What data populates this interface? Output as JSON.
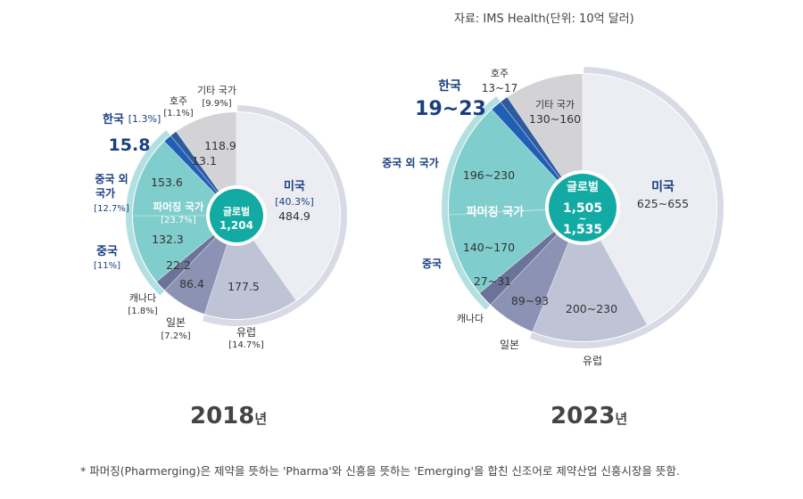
{
  "source": "자료: IMS Health(단위: 10억 달러)",
  "footnote": "* 파머징(Pharmerging)은 제약을 뜻하는 'Pharma'와 신흥을 뜻하는 'Emerging'을 합친 신조어로 제약산업 신흥시장을 뜻함.",
  "colors": {
    "usa": "#ebedf3",
    "europe": "#bfc3d6",
    "japan": "#8b92b4",
    "canada": "#6c7399",
    "pharmerging": "#7fcdcc",
    "korea_dark": "#1c3f7a",
    "korea": "#1f5fb5",
    "australia": "#2f5a9c",
    "other": "#d3d3d6",
    "center": "#12aaa3",
    "label_blue": "#1a3f80"
  },
  "chart_data": [
    {
      "type": "pie",
      "year_label": "2018",
      "year_suffix": "년",
      "center_label": "글로벌",
      "center_value": "1,204",
      "pharmerging_label": "파머징 국가",
      "pharmerging_pct": "[23.7%]",
      "slices": [
        {
          "key": "usa",
          "name": "미국",
          "pct": "[40.3%]",
          "value": "484.9"
        },
        {
          "key": "europe",
          "name": "유럽",
          "pct": "[14.7%]",
          "value": "177.5"
        },
        {
          "key": "japan",
          "name": "일본",
          "pct": "[7.2%]",
          "value": "86.4"
        },
        {
          "key": "canada",
          "name": "캐나다",
          "pct": "[1.8%]",
          "value": "22.2"
        },
        {
          "key": "china",
          "name": "중국",
          "pct": "[11%]",
          "value": "132.3"
        },
        {
          "key": "other_pharmerging",
          "name": "중국 외 국가",
          "pct": "[12.7%]",
          "value": "153.6"
        },
        {
          "key": "korea",
          "name": "한국",
          "pct": "[1.3%]",
          "value": "15.8"
        },
        {
          "key": "australia",
          "name": "호주",
          "pct": "[1.1%]",
          "value": "13.1"
        },
        {
          "key": "other",
          "name": "기타 국가",
          "pct": "[9.9%]",
          "value": "118.9"
        }
      ]
    },
    {
      "type": "pie",
      "year_label": "2023",
      "year_suffix": "년",
      "center_label": "글로벌",
      "center_value_1": "1,505",
      "center_tilde": "~",
      "center_value_2": "1,535",
      "pharmerging_label": "파머징 국가",
      "slices": [
        {
          "key": "usa",
          "name": "미국",
          "value": "625~655"
        },
        {
          "key": "europe",
          "name": "유럽",
          "value": "200~230"
        },
        {
          "key": "japan",
          "name": "일본",
          "value": "89~93"
        },
        {
          "key": "canada",
          "name": "캐나다",
          "value": "27~31"
        },
        {
          "key": "china",
          "name": "중국",
          "value": "140~170"
        },
        {
          "key": "other_pharmerging",
          "name": "중국 외 국가",
          "value": "196~230"
        },
        {
          "key": "korea",
          "name": "한국",
          "value": "19~23"
        },
        {
          "key": "australia",
          "name": "호주",
          "value": "13~17"
        },
        {
          "key": "other",
          "name": "기타 국가",
          "value": "130~160"
        }
      ]
    }
  ]
}
